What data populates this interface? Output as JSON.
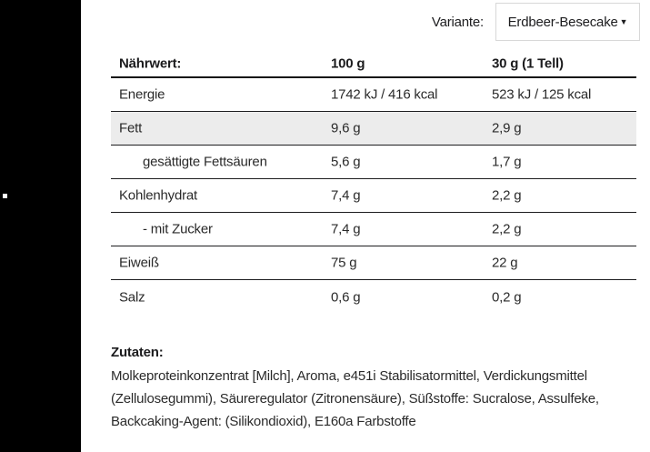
{
  "variant": {
    "label": "Variante:",
    "selected": "Erdbeer-Besecake",
    "caret_icon": "▼"
  },
  "table": {
    "headers": [
      "Nährwert:",
      "100 g",
      "30 g (1 Tell)"
    ],
    "rows": [
      {
        "label": "Energie",
        "per100": "1742 kJ / 416 kcal",
        "per30": "523 kJ / 125 kcal"
      },
      {
        "label": "Fett",
        "per100": "9,6 g",
        "per30": "2,9 g"
      },
      {
        "label": "gesättigte Fettsäuren",
        "per100": "5,6 g",
        "per30": "1,7 g"
      },
      {
        "label": "Kohlenhydrat",
        "per100": "7,4 g",
        "per30": "2,2 g"
      },
      {
        "label": "- mit Zucker",
        "per100": "7,4 g",
        "per30": "2,2 g"
      },
      {
        "label": "Eiweiß",
        "per100": "75 g",
        "per30": "22 g"
      },
      {
        "label": "Salz",
        "per100": "0,6 g",
        "per30": "0,2 g"
      }
    ]
  },
  "ingredients": {
    "heading": "Zutaten:",
    "text": "Molkeproteinkonzentrat [Milch], Aroma, e451i Stabilisatormittel, Verdickungsmittel (Zellulosegummi), Säureregulator (Zitronensäure), Süßstoffe: Sucralose, Assulfeke, Backcaking-Agent: (Silikondioxid), E160a Farbstoffe"
  },
  "colors": {
    "sidebar": "#000000",
    "row_highlight": "#ececec",
    "divider": "#1d1d1f",
    "dropdown_border": "#d8d8d8"
  }
}
